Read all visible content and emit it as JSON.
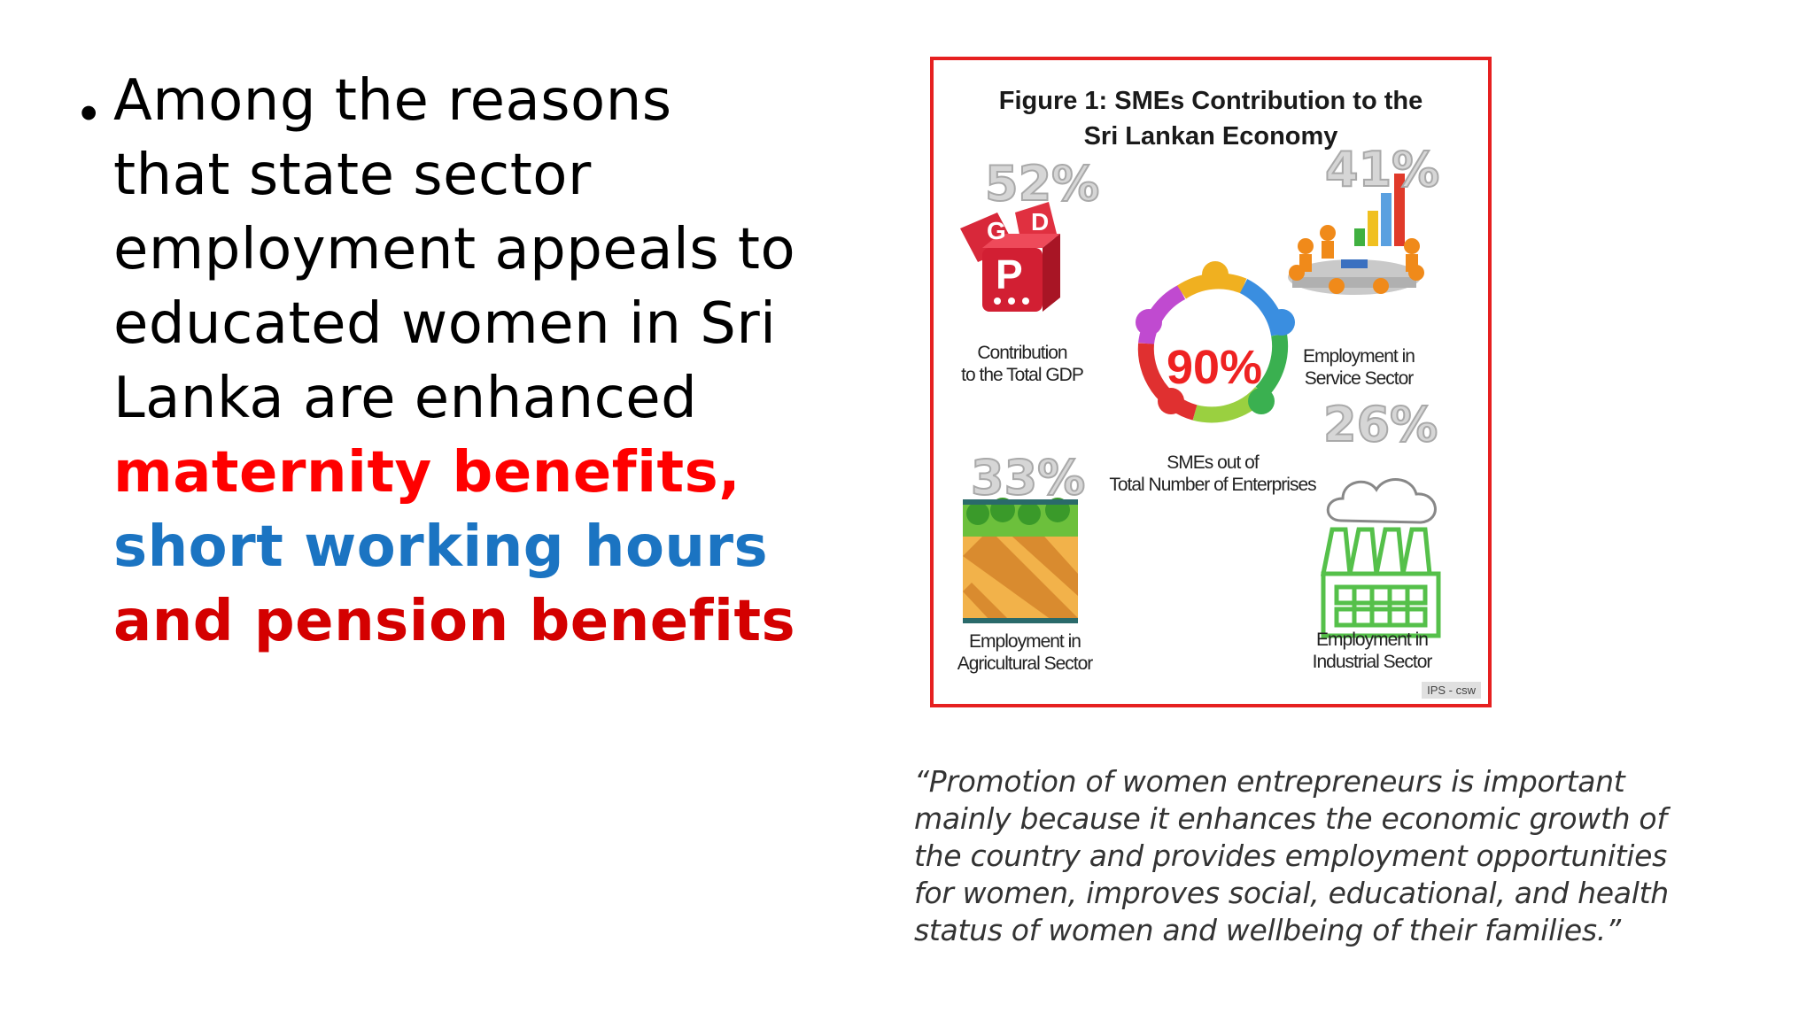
{
  "bullet": {
    "lines": [
      "Among the reasons",
      "that state sector",
      "employment appeals to",
      "educated women in Sri",
      "Lanka are enhanced"
    ],
    "emphasis": [
      {
        "text": "maternity benefits,",
        "color": "#ff0000"
      },
      {
        "text": "short working hours",
        "color": "#1b74c2"
      },
      {
        "text": "and pension benefits",
        "color": "#d40000"
      }
    ]
  },
  "figure": {
    "title_line1": "Figure 1: SMEs Contribution to the",
    "title_line2": "Sri Lankan Economy",
    "gdp": {
      "pct": "52%",
      "cap1": "Contribution",
      "cap2": "to the Total GDP",
      "dice": [
        "G",
        "D",
        "P"
      ]
    },
    "service": {
      "pct": "41%",
      "cap1": "Employment in",
      "cap2": "Service Sector"
    },
    "center": {
      "pct": "90%",
      "cap1": "SMEs out of",
      "cap2": "Total Number of Enterprises"
    },
    "agri": {
      "pct": "33%",
      "cap1": "Employment in",
      "cap2": "Agricultural Sector"
    },
    "industrial": {
      "pct": "26%",
      "cap1": "Employment in",
      "cap2": "Industrial Sector"
    },
    "credit": "IPS - csw",
    "colors": {
      "border": "#e62020",
      "center_pct": "#ee2222",
      "factory": "#55c04a"
    }
  },
  "quote": {
    "lines": [
      "“Promotion of women entrepreneurs is important",
      "mainly because it enhances the economic growth of",
      "the country and provides employment opportunities",
      "for women, improves social, educational, and health",
      "status of women and wellbeing of their families.”"
    ]
  }
}
